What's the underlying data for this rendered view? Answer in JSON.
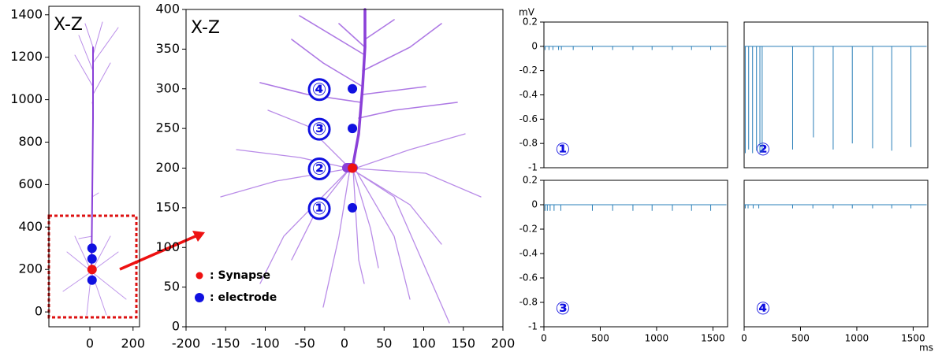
{
  "chart_data": [
    {
      "type": "scatter",
      "title": "X-Z",
      "xlim": [
        -190,
        230
      ],
      "ylim": [
        -70,
        1440
      ],
      "xticks": [
        0,
        200
      ],
      "yticks": [
        0,
        200,
        400,
        600,
        800,
        1000,
        1200,
        1400
      ],
      "series": [
        {
          "color": "#ee1111",
          "x": [
            10
          ],
          "values": [
            200
          ]
        },
        {
          "color": "#1010e0",
          "x": [
            10,
            10,
            10
          ],
          "values": [
            300,
            250,
            150
          ]
        }
      ]
    },
    {
      "type": "scatter",
      "title": "X-Z",
      "xlim": [
        -200,
        200
      ],
      "ylim": [
        0,
        400
      ],
      "xticks": [
        -200,
        -150,
        -100,
        -50,
        0,
        50,
        100,
        150,
        200
      ],
      "yticks": [
        0,
        50,
        100,
        150,
        200,
        250,
        300,
        350,
        400
      ],
      "legend": "lower left",
      "series": [
        {
          "name": ": Synapse",
          "color": "#ee1111",
          "x": [
            10
          ],
          "values": [
            200
          ],
          "point_labels": [
            "②"
          ]
        },
        {
          "name": ": electrode",
          "color": "#1010e0",
          "x": [
            10,
            10,
            10
          ],
          "values": [
            300,
            250,
            150
          ],
          "point_labels": [
            "④",
            "③",
            "①"
          ]
        }
      ]
    },
    {
      "type": "line",
      "label": "①",
      "ylabel": "mV",
      "xlim": [
        0,
        1630
      ],
      "ylim": [
        -1,
        0.2
      ],
      "yticks": [
        0.2,
        0,
        -0.2,
        -0.4,
        -0.6,
        -0.8,
        -1
      ],
      "series": [
        {
          "color": "#2a7fb8",
          "x": [
            0,
            10,
            10,
            10,
            45,
            45,
            45,
            80,
            80,
            80,
            130,
            130,
            130,
            155,
            155,
            155,
            260,
            260,
            260,
            430,
            430,
            430,
            610,
            610,
            610,
            790,
            790,
            790,
            960,
            960,
            960,
            1140,
            1140,
            1140,
            1310,
            1310,
            1310,
            1480,
            1480,
            1480,
            1620
          ],
          "values": [
            0,
            0,
            -0.03,
            0,
            0,
            -0.03,
            0,
            0,
            -0.03,
            0,
            0,
            -0.03,
            0,
            0,
            -0.03,
            0,
            0,
            -0.03,
            0,
            0,
            -0.03,
            0,
            0,
            -0.03,
            0,
            0,
            -0.03,
            0,
            0,
            -0.03,
            0,
            0,
            -0.03,
            0,
            0,
            -0.03,
            0,
            0,
            -0.03,
            0,
            0
          ]
        }
      ]
    },
    {
      "type": "line",
      "label": "②",
      "xlim": [
        0,
        1630
      ],
      "ylim": [
        -1,
        0.2
      ],
      "series": [
        {
          "color": "#2a7fb8",
          "x": [
            0,
            10,
            10,
            10,
            40,
            40,
            40,
            75,
            75,
            75,
            110,
            110,
            110,
            140,
            140,
            140,
            160,
            160,
            160,
            430,
            430,
            430,
            615,
            615,
            615,
            790,
            790,
            790,
            960,
            960,
            960,
            1140,
            1140,
            1140,
            1310,
            1310,
            1310,
            1480,
            1480,
            1480,
            1620
          ],
          "values": [
            0,
            0,
            -0.88,
            0,
            0,
            -0.85,
            0,
            0,
            -0.88,
            0,
            0,
            -0.86,
            0,
            0,
            -0.88,
            0,
            0,
            -0.87,
            0,
            0,
            -0.85,
            0,
            0,
            -0.75,
            0,
            0,
            -0.85,
            0,
            0,
            -0.8,
            0,
            0,
            -0.84,
            0,
            0,
            -0.86,
            0,
            0,
            -0.83,
            0,
            0
          ]
        }
      ]
    },
    {
      "type": "line",
      "label": "③",
      "xlim": [
        0,
        1630
      ],
      "ylim": [
        -1,
        0.2
      ],
      "xticks": [
        0,
        500,
        1000,
        1500
      ],
      "yticks": [
        0.2,
        0,
        -0.2,
        -0.4,
        -0.6,
        -0.8,
        -1
      ],
      "series": [
        {
          "color": "#2a7fb8",
          "x": [
            0,
            10,
            10,
            10,
            30,
            30,
            30,
            55,
            55,
            55,
            90,
            90,
            90,
            150,
            150,
            150,
            430,
            430,
            430,
            610,
            610,
            610,
            790,
            790,
            790,
            960,
            960,
            960,
            1140,
            1140,
            1140,
            1310,
            1310,
            1310,
            1480,
            1480,
            1480,
            1620
          ],
          "values": [
            0,
            0,
            -0.05,
            0,
            0,
            -0.05,
            0,
            0,
            -0.05,
            0,
            0,
            -0.05,
            0,
            0,
            -0.05,
            0,
            0,
            -0.05,
            0,
            0,
            -0.05,
            0,
            0,
            -0.05,
            0,
            0,
            -0.05,
            0,
            0,
            -0.05,
            0,
            0,
            -0.05,
            0,
            0,
            -0.05,
            0,
            0
          ]
        }
      ]
    },
    {
      "type": "line",
      "label": "④",
      "xlabel": "ms",
      "xlim": [
        0,
        1630
      ],
      "ylim": [
        -1,
        0.2
      ],
      "xticks": [
        0,
        500,
        1000,
        1500
      ],
      "series": [
        {
          "color": "#2a7fb8",
          "x": [
            0,
            10,
            10,
            10,
            35,
            35,
            35,
            80,
            80,
            80,
            130,
            130,
            130,
            430,
            430,
            430,
            610,
            610,
            610,
            790,
            790,
            790,
            960,
            960,
            960,
            1140,
            1140,
            1140,
            1310,
            1310,
            1310,
            1480,
            1480,
            1480,
            1620
          ],
          "values": [
            0,
            0,
            -0.03,
            0,
            0,
            -0.03,
            0,
            0,
            -0.03,
            0,
            0,
            -0.03,
            0,
            0,
            -0.03,
            0,
            0,
            -0.03,
            0,
            0,
            -0.03,
            0,
            0,
            -0.03,
            0,
            0,
            -0.03,
            0,
            0,
            -0.03,
            0,
            0,
            -0.03,
            0,
            0
          ]
        }
      ]
    }
  ]
}
